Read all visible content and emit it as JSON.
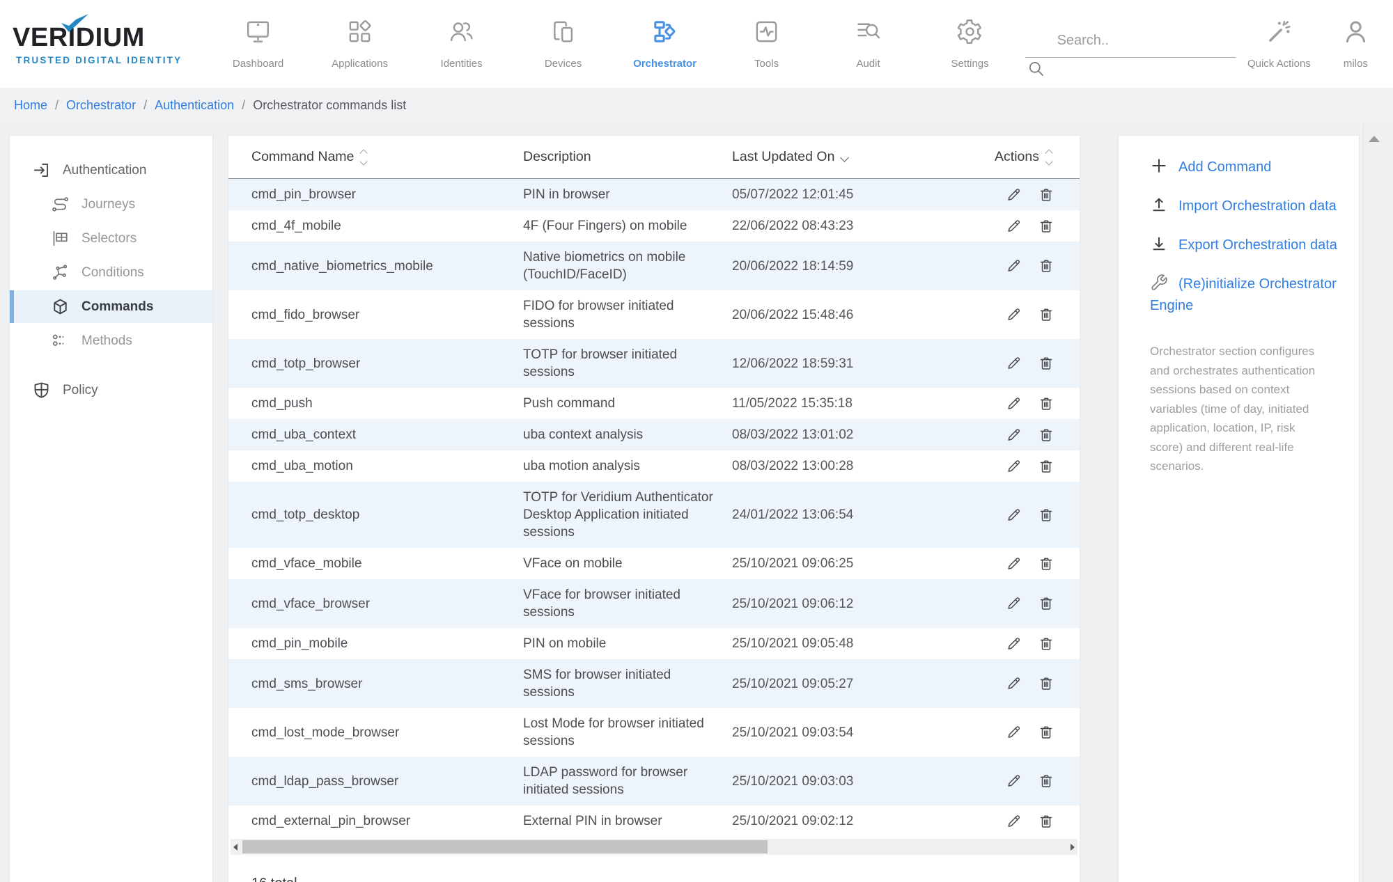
{
  "brand": {
    "name": "VERIDIUM",
    "tagline": "TRUSTED DIGITAL IDENTITY"
  },
  "nav": {
    "items": [
      {
        "label": "Dashboard",
        "icon": "dashboard-icon",
        "active": false
      },
      {
        "label": "Applications",
        "icon": "applications-icon",
        "active": false
      },
      {
        "label": "Identities",
        "icon": "identities-icon",
        "active": false
      },
      {
        "label": "Devices",
        "icon": "devices-icon",
        "active": false
      },
      {
        "label": "Orchestrator",
        "icon": "orchestrator-icon",
        "active": true
      },
      {
        "label": "Tools",
        "icon": "tools-icon",
        "active": false
      },
      {
        "label": "Audit",
        "icon": "audit-icon",
        "active": false
      },
      {
        "label": "Settings",
        "icon": "settings-icon",
        "active": false
      }
    ],
    "search_placeholder": "Search..",
    "quick_actions_label": "Quick Actions",
    "user_label": "milos"
  },
  "breadcrumb": {
    "links": [
      "Home",
      "Orchestrator",
      "Authentication"
    ],
    "separator": "/",
    "current": "Orchestrator commands list"
  },
  "sidebar": {
    "section_label": "Authentication",
    "items": [
      {
        "label": "Journeys",
        "icon": "journeys-icon",
        "active": false
      },
      {
        "label": "Selectors",
        "icon": "selectors-icon",
        "active": false
      },
      {
        "label": "Conditions",
        "icon": "conditions-icon",
        "active": false
      },
      {
        "label": "Commands",
        "icon": "commands-icon",
        "active": true
      },
      {
        "label": "Methods",
        "icon": "methods-icon",
        "active": false
      }
    ],
    "policy_label": "Policy"
  },
  "table": {
    "columns": [
      {
        "label": "Command Name",
        "sort": "both"
      },
      {
        "label": "Description",
        "sort": "none"
      },
      {
        "label": "Last Updated On",
        "sort": "desc"
      },
      {
        "label": "Actions",
        "sort": "both"
      }
    ],
    "rows": [
      {
        "name": "cmd_pin_browser",
        "description": "PIN in browser",
        "updated": "05/07/2022 12:01:45"
      },
      {
        "name": "cmd_4f_mobile",
        "description": "4F (Four Fingers) on mobile",
        "updated": "22/06/2022 08:43:23"
      },
      {
        "name": "cmd_native_biometrics_mobile",
        "description": "Native biometrics on mobile (TouchID/FaceID)",
        "updated": "20/06/2022 18:14:59"
      },
      {
        "name": "cmd_fido_browser",
        "description": "FIDO for browser initiated sessions",
        "updated": "20/06/2022 15:48:46"
      },
      {
        "name": "cmd_totp_browser",
        "description": "TOTP for browser initiated sessions",
        "updated": "12/06/2022 18:59:31"
      },
      {
        "name": "cmd_push",
        "description": "Push command",
        "updated": "11/05/2022 15:35:18"
      },
      {
        "name": "cmd_uba_context",
        "description": "uba context analysis",
        "updated": "08/03/2022 13:01:02"
      },
      {
        "name": "cmd_uba_motion",
        "description": "uba motion analysis",
        "updated": "08/03/2022 13:00:28"
      },
      {
        "name": "cmd_totp_desktop",
        "description": "TOTP for Veridium Authenticator Desktop Application initiated sessions",
        "updated": "24/01/2022 13:06:54"
      },
      {
        "name": "cmd_vface_mobile",
        "description": "VFace on mobile",
        "updated": "25/10/2021 09:06:25"
      },
      {
        "name": "cmd_vface_browser",
        "description": "VFace for browser initiated sessions",
        "updated": "25/10/2021 09:06:12"
      },
      {
        "name": "cmd_pin_mobile",
        "description": "PIN on mobile",
        "updated": "25/10/2021 09:05:48"
      },
      {
        "name": "cmd_sms_browser",
        "description": "SMS for browser initiated sessions",
        "updated": "25/10/2021 09:05:27"
      },
      {
        "name": "cmd_lost_mode_browser",
        "description": "Lost Mode for browser initiated sessions",
        "updated": "25/10/2021 09:03:54"
      },
      {
        "name": "cmd_ldap_pass_browser",
        "description": "LDAP password for browser initiated sessions",
        "updated": "25/10/2021 09:03:03"
      },
      {
        "name": "cmd_external_pin_browser",
        "description": "External PIN in browser",
        "updated": "25/10/2021 09:02:12"
      }
    ],
    "total_label": "16 total"
  },
  "actions_panel": {
    "links": [
      {
        "label": "Add Command",
        "icon": "plus-icon"
      },
      {
        "label": "Import Orchestration data",
        "icon": "upload-icon"
      },
      {
        "label": "Export Orchestration data",
        "icon": "download-icon"
      },
      {
        "label": "(Re)initialize Orchestrator Engine",
        "icon": "wrench-icon"
      }
    ],
    "description": "Orchestrator section configures and orchestrates authentication sessions based on context variables (time of day, initiated application, location, IP, risk score) and different real-life scenarios."
  },
  "colors": {
    "accent_blue": "#4a90e2",
    "link_blue": "#2f7de1",
    "brand_blue": "#2488c6",
    "page_bg": "#eef0f2",
    "panel_border": "#e6e8ea",
    "row_alt": "#edf4fa",
    "sidebar_active_bg": "#e9f1f9",
    "sidebar_active_bar": "#7fb0e0"
  }
}
